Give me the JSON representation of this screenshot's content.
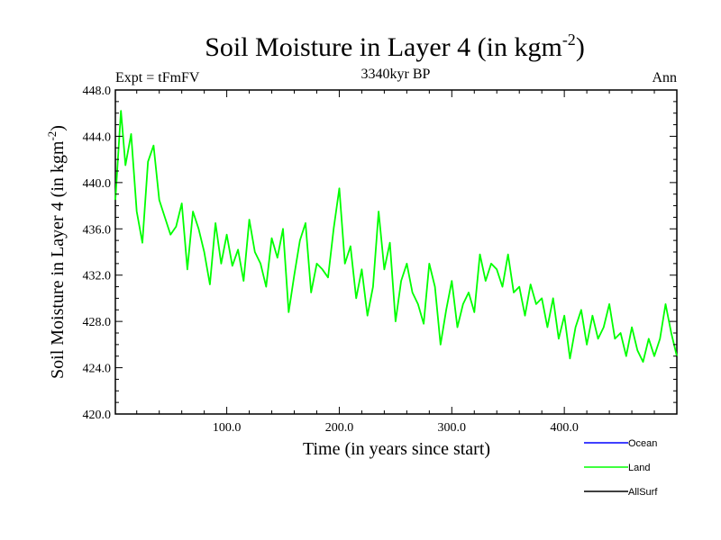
{
  "chart_data": {
    "type": "line",
    "title": "Soil Moisture in Layer 4 (in kgm",
    "title_sup": "-2",
    "title_close": ")",
    "subtitle_left": "Expt = tFmFV",
    "subtitle_center": "3340kyr BP",
    "subtitle_right": "Ann",
    "xlabel": "Time (in years since start)",
    "ylabel": "Soil Moisture in Layer 4 (in kgm",
    "ylabel_sup": "-2",
    "ylabel_close": ")",
    "xlim": [
      1,
      500
    ],
    "ylim": [
      420,
      448
    ],
    "x_ticks": [
      100,
      200,
      300,
      400
    ],
    "x_tick_labels": [
      "100.0",
      "200.0",
      "300.0",
      "400.0"
    ],
    "y_ticks": [
      420,
      424,
      428,
      432,
      436,
      440,
      444,
      448
    ],
    "y_tick_labels": [
      "420.0",
      "424.0",
      "428.0",
      "432.0",
      "436.0",
      "440.0",
      "444.0",
      "448.0"
    ],
    "legend": [
      {
        "name": "Ocean",
        "color": "#0000ff"
      },
      {
        "name": "Land",
        "color": "#00ff00"
      },
      {
        "name": "AllSurf",
        "color": "#000000"
      }
    ],
    "series": [
      {
        "name": "Land",
        "color": "#00ff00",
        "x": [
          1,
          6,
          10,
          15,
          20,
          25,
          30,
          35,
          40,
          45,
          50,
          55,
          60,
          65,
          70,
          75,
          80,
          85,
          90,
          95,
          100,
          105,
          110,
          115,
          120,
          125,
          130,
          135,
          140,
          145,
          150,
          155,
          160,
          165,
          170,
          175,
          180,
          185,
          190,
          195,
          200,
          205,
          210,
          215,
          220,
          225,
          230,
          235,
          240,
          245,
          250,
          255,
          260,
          265,
          270,
          275,
          280,
          285,
          290,
          295,
          300,
          305,
          310,
          315,
          320,
          325,
          330,
          335,
          340,
          345,
          350,
          355,
          360,
          365,
          370,
          375,
          380,
          385,
          390,
          395,
          400,
          405,
          410,
          415,
          420,
          425,
          430,
          435,
          440,
          445,
          450,
          455,
          460,
          465,
          470,
          475,
          480,
          485,
          490,
          495,
          500
        ],
        "values": [
          438.5,
          446.2,
          441.5,
          444.2,
          437.5,
          434.8,
          441.8,
          443.2,
          438.5,
          437.0,
          435.5,
          436.2,
          438.2,
          432.5,
          437.5,
          436.0,
          434.0,
          431.2,
          436.5,
          433.0,
          435.5,
          432.8,
          434.2,
          431.5,
          436.8,
          434.0,
          433.0,
          431.0,
          435.2,
          433.5,
          436.0,
          428.8,
          432.0,
          435.0,
          436.5,
          430.5,
          433.0,
          432.5,
          431.8,
          436.0,
          439.5,
          433.0,
          434.5,
          430.0,
          432.5,
          428.5,
          431.0,
          437.5,
          432.5,
          434.8,
          428.0,
          431.5,
          433.0,
          430.5,
          429.5,
          427.8,
          433.0,
          431.0,
          426.0,
          429.0,
          431.5,
          427.5,
          429.5,
          430.5,
          428.8,
          433.8,
          431.5,
          433.0,
          432.5,
          431.0,
          433.8,
          430.5,
          431.0,
          428.5,
          431.2,
          429.5,
          430.0,
          427.5,
          430.0,
          426.5,
          428.5,
          424.8,
          427.5,
          429.0,
          426.0,
          428.5,
          426.5,
          427.5,
          429.5,
          426.5,
          427.0,
          425.0,
          427.5,
          425.5,
          424.5,
          426.5,
          425.0,
          426.5,
          429.5,
          427.0,
          425.0
        ]
      }
    ]
  }
}
